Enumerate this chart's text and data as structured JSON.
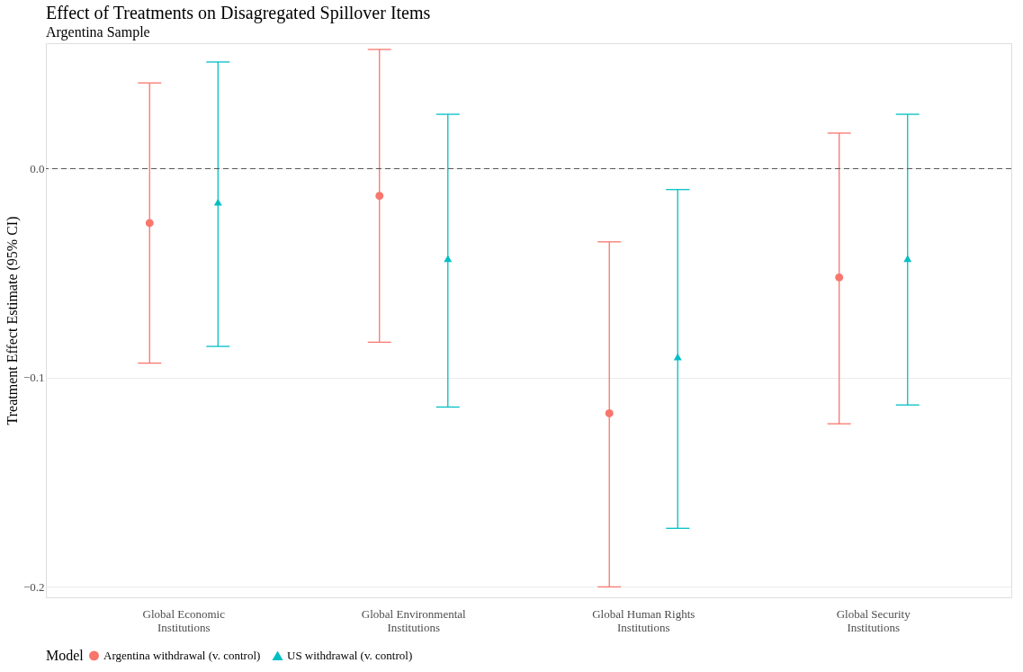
{
  "chart_data": {
    "type": "scatter",
    "title": "Effect of Treatments on Disagregated Spillover Items",
    "subtitle": "Argentina Sample",
    "ylabel": "Treatment Effect Estimate (95% CI)",
    "legend_title": "Model",
    "categories": [
      "Global Economic Institutions",
      "Global Environmental Institutions",
      "Global Human Rights Institutions",
      "Global Security Institutions"
    ],
    "series": [
      {
        "name": "Argentina withdrawal (v. control)",
        "color": "#f8766d",
        "marker": "circle",
        "values": [
          -0.026,
          -0.013,
          -0.117,
          -0.052
        ],
        "errors": [
          [
            -0.093,
            0.041
          ],
          [
            -0.083,
            0.057
          ],
          [
            -0.2,
            -0.035
          ],
          [
            -0.122,
            0.017
          ]
        ]
      },
      {
        "name": "US withdrawal (v. control)",
        "color": "#00bfc4",
        "marker": "triangle",
        "values": [
          -0.016,
          -0.043,
          -0.09,
          -0.043
        ],
        "errors": [
          [
            -0.085,
            0.051
          ],
          [
            -0.114,
            0.026
          ],
          [
            -0.172,
            -0.01
          ],
          [
            -0.113,
            0.026
          ]
        ]
      }
    ],
    "ylim": [
      -0.205,
      0.06
    ],
    "yticks": [
      {
        "value": -0.2,
        "label": "−0.2"
      },
      {
        "value": -0.1,
        "label": "−0.1"
      },
      {
        "value": 0,
        "label": "0.0"
      }
    ],
    "ref_lines": [
      {
        "axis": "y",
        "value": 0,
        "color": "#555555",
        "line_style": "dashed"
      }
    ],
    "grid": "y",
    "legend": "bottom"
  }
}
